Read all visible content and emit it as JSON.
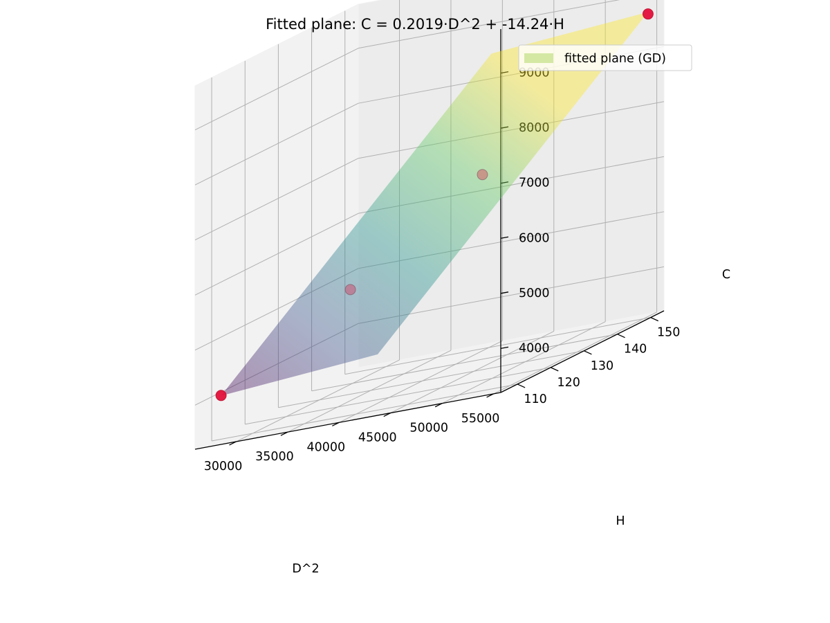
{
  "chart_data": {
    "type": "surface3d",
    "title": "Fitted plane: C = 0.2019·D^2 + -14.24·H",
    "xlabel": "D^2",
    "ylabel": "H",
    "zlabel": "C",
    "x_ticks": [
      "30000",
      "35000",
      "40000",
      "45000",
      "50000",
      "55000"
    ],
    "y_ticks": [
      "110",
      "120",
      "130",
      "140",
      "150"
    ],
    "z_ticks": [
      "4000",
      "5000",
      "6000",
      "7000",
      "8000",
      "9000"
    ],
    "xlim": [
      26000,
      55700
    ],
    "ylim": [
      105,
      154
    ],
    "zlim": [
      3200,
      9800
    ],
    "grid": true,
    "legend": {
      "entries": [
        "fitted plane (GD)"
      ],
      "placement": "top-right",
      "swatch_color": "#d4e8a4"
    },
    "plane": {
      "coef_x": 0.2019,
      "coef_y": -14.24,
      "x_range": [
        27556,
        53824
      ],
      "y_range": [
        108,
        155
      ],
      "colormap": "viridis",
      "alpha": 0.4
    },
    "points": {
      "color": "#e3103b",
      "data": [
        {
          "x": 27556,
          "y": 108,
          "z": 4032
        },
        {
          "x": 33000,
          "y": 130,
          "z": 5100
        },
        {
          "x": 40000,
          "y": 148,
          "z": 6400
        },
        {
          "x": 53824,
          "y": 155,
          "z": 8626
        }
      ]
    }
  }
}
